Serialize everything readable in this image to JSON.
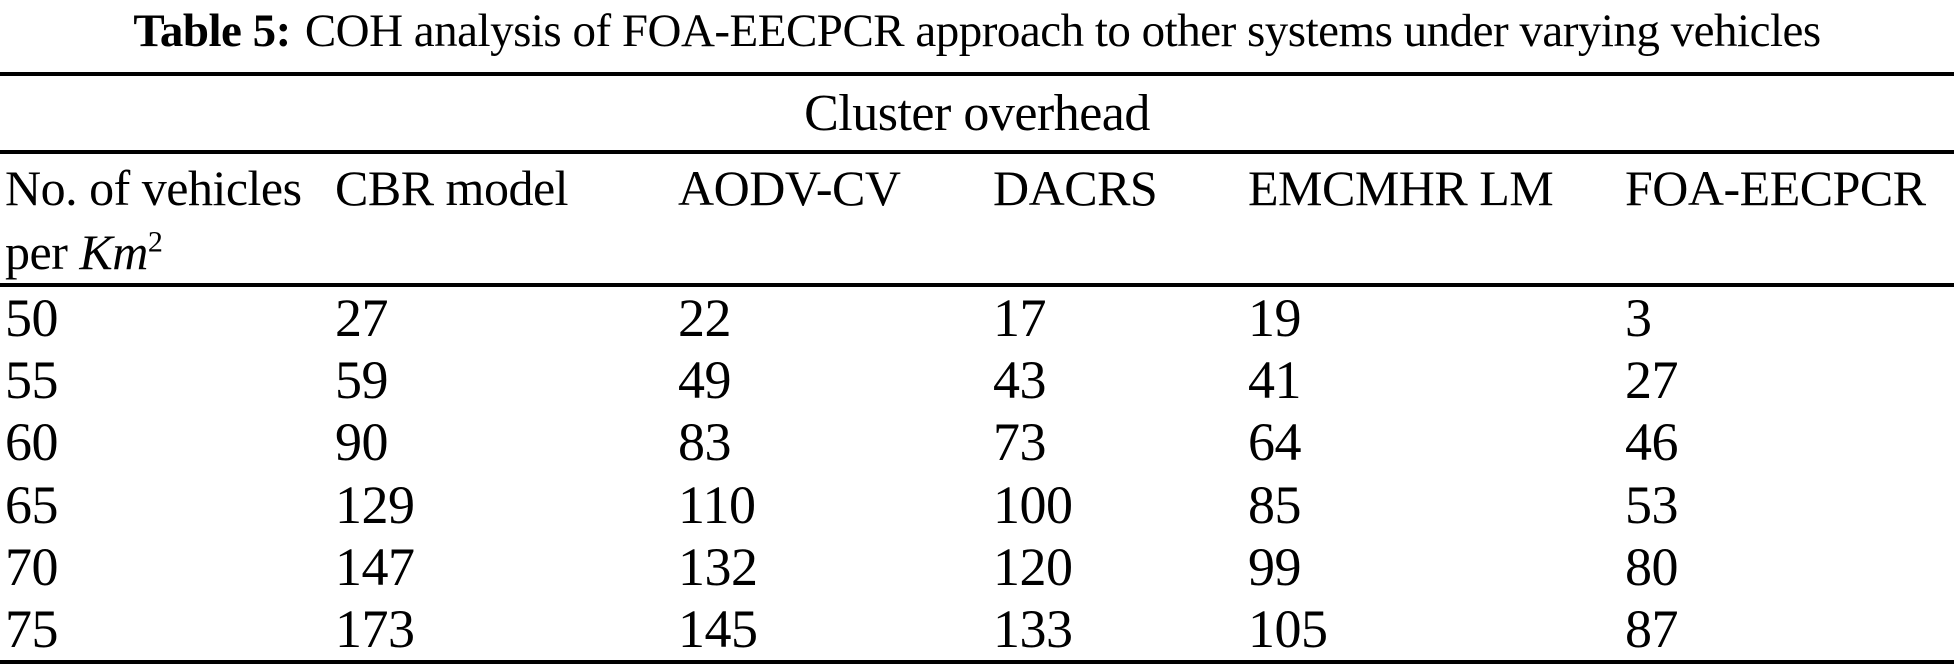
{
  "caption": {
    "label": "Table 5:",
    "text": "COH analysis of FOA-EECPCR approach to other systems under varying vehicles"
  },
  "table": {
    "group_header": "Cluster overhead",
    "columns": {
      "vehicles_line1": "No. of vehicles",
      "vehicles_line2_prefix": "per ",
      "vehicles_unit": "Km",
      "vehicles_unit_sup": "2",
      "others": [
        "CBR model",
        "AODV-CV",
        "DACRS",
        "EMCMHR LM",
        "FOA-EECPCR"
      ]
    },
    "rows": [
      [
        "50",
        "27",
        "22",
        "17",
        "19",
        "3"
      ],
      [
        "55",
        "59",
        "49",
        "43",
        "41",
        "27"
      ],
      [
        "60",
        "90",
        "83",
        "73",
        "64",
        "46"
      ],
      [
        "65",
        "129",
        "110",
        "100",
        "85",
        "53"
      ],
      [
        "70",
        "147",
        "132",
        "120",
        "99",
        "80"
      ],
      [
        "75",
        "173",
        "145",
        "133",
        "105",
        "87"
      ]
    ]
  },
  "colors": {
    "text": "#000000",
    "background": "#ffffff",
    "rule": "#000000"
  }
}
